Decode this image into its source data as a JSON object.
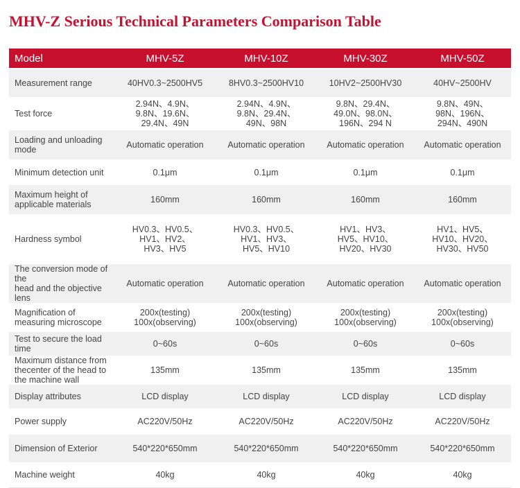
{
  "title": "MHV-Z Serious Technical Parameters Comparison Table",
  "table": {
    "header": [
      "Model",
      "MHV-5Z",
      "MHV-10Z",
      "MHV-30Z",
      "MHV-50Z"
    ],
    "rows": [
      [
        "Measurement range",
        "40HV0.3~2500HV5",
        "8HV0.3~2500HV10",
        "10HV2~2500HV30",
        "40HV~2500HV"
      ],
      [
        "Test force",
        [
          "2.94N、4.9N、",
          "9.8N、19.6N、",
          "29.4N、49N"
        ],
        [
          "2.94N、4.9N、",
          "9.8N、29.4N、",
          "49N、98N"
        ],
        [
          "9.8N、29.4N、",
          "49.0N、98.0N、",
          "196N、294 N"
        ],
        [
          "9.8N、49N、",
          "98N、196N、",
          "294N、490N"
        ]
      ],
      [
        "Loading and unloading mode",
        "Automatic operation",
        "Automatic operation",
        "Automatic operation",
        "Automatic operation"
      ],
      [
        "Minimum detection unit",
        "0.1μm",
        "0.1μm",
        "0.1μm",
        "0.1μm"
      ],
      [
        [
          "Maximum height of",
          "applicable materials"
        ],
        "160mm",
        "160mm",
        "160mm",
        "160mm"
      ],
      [
        "Hardness symbol",
        [
          "HV0.3、HV0.5、",
          "HV1、HV2、",
          "HV3、HV5"
        ],
        [
          "HV0.3、HV0.5、",
          "HV1、HV3、",
          "HV5、HV10"
        ],
        [
          "HV1、HV3、",
          "HV5、HV10、",
          "HV20、HV30"
        ],
        [
          "HV1、HV5、",
          "HV10、HV20、",
          "HV30、HV50"
        ]
      ],
      [
        [
          "The conversion mode of the",
          "head and the objective lens"
        ],
        "Automatic operation",
        "Automatic operation",
        "Automatic operation",
        "Automatic operation"
      ],
      [
        [
          "Magnification of",
          "measuring microscope"
        ],
        [
          "200x(testing)",
          "100x(observing)"
        ],
        [
          "200x(testing)",
          "100x(observing)"
        ],
        [
          "200x(testing)",
          "100x(observing)"
        ],
        [
          "200x(testing)",
          "100x(observing)"
        ]
      ],
      [
        "Test to secure the load time",
        "0~60s",
        "0~60s",
        "0~60s",
        "0~60s"
      ],
      [
        [
          "Maximum distance from",
          "thecenter of the head to",
          "the machine wall"
        ],
        "135mm",
        "135mm",
        "135mm",
        "135mm"
      ],
      [
        "Display attributes",
        "LCD display",
        "LCD display",
        "LCD display",
        "LCD display"
      ],
      [
        "Power supply",
        "AC220V/50Hz",
        "AC220V/50Hz",
        "AC220V/50Hz",
        "AC220V/50Hz"
      ],
      [
        "Dimension of Exterior",
        "540*220*650mm",
        "540*220*650mm",
        "540*220*650mm",
        "540*220*650mm"
      ],
      [
        "Machine weight",
        "40kg",
        "40kg",
        "40kg",
        "40kg"
      ]
    ]
  }
}
